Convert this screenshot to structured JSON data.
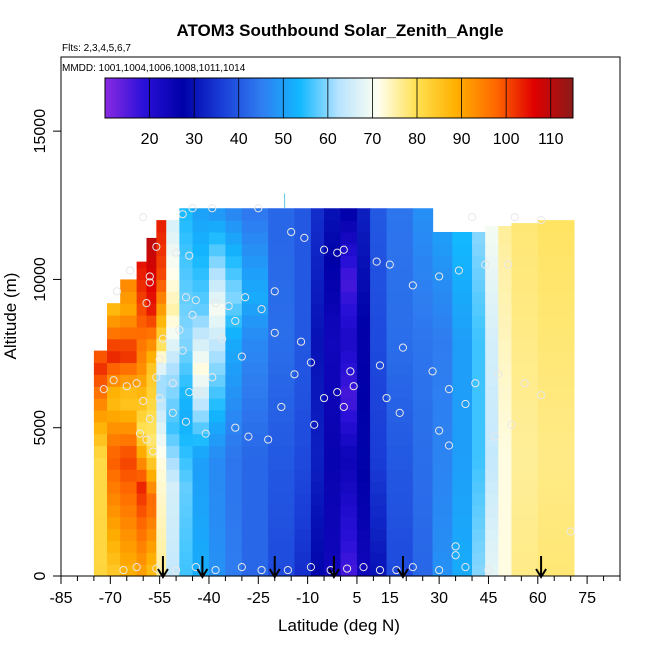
{
  "header": {
    "title": "ATOM3 Southbound Solar_Zenith_Angle",
    "flights": "Flts: 2,3,4,5,6,7",
    "dates": "MMDD: 1001,1004,1006,1008,1011,1014"
  },
  "chart_data": {
    "type": "heatmap",
    "title": "ATOM3 Southbound Solar_Zenith_Angle",
    "xlabel": "Latitude (deg N)",
    "ylabel": "Altitude (m)",
    "xlim": [
      -85,
      85
    ],
    "ylim": [
      0,
      17500
    ],
    "x_ticks": [
      -85,
      -70,
      -55,
      -40,
      -25,
      -10,
      5,
      15,
      30,
      45,
      60,
      75
    ],
    "x_minor_ticks": [
      -80,
      -75,
      -65,
      -60,
      -50,
      -45,
      -35,
      -30,
      -20,
      -15,
      -5,
      0,
      10,
      20,
      25,
      35,
      40,
      50,
      55,
      65,
      70,
      80,
      85
    ],
    "y_ticks": [
      0,
      5000,
      10000,
      15000
    ],
    "colorbar": {
      "ticks": [
        20,
        30,
        40,
        50,
        60,
        70,
        80,
        90,
        100,
        110
      ],
      "range": [
        10,
        115
      ],
      "colors": [
        "#8a2be2",
        "#2a10d8",
        "#0000a8",
        "#1a3ed8",
        "#2f7cf0",
        "#12b8ff",
        "#b8e4ff",
        "#fffff0",
        "#ffe050",
        "#ffb000",
        "#ff6a00",
        "#e00000",
        "#8b1a1a"
      ]
    },
    "marker_latitudes": [
      -54,
      -42,
      -20,
      -2,
      19,
      61
    ],
    "columns": [
      {
        "x0": -75,
        "x1": -71,
        "ytop": 7600,
        "values": [
          [
            0,
            82
          ],
          [
            4000,
            81
          ],
          [
            7000,
            102
          ],
          [
            7600,
            98
          ]
        ]
      },
      {
        "x0": -71,
        "x1": -67,
        "ytop": 9200,
        "values": [
          [
            0,
            84
          ],
          [
            4000,
            99
          ],
          [
            6000,
            86
          ],
          [
            7500,
            104
          ],
          [
            9200,
            85
          ]
        ]
      },
      {
        "x0": -67,
        "x1": -62,
        "ytop": 10000,
        "values": [
          [
            0,
            88
          ],
          [
            4000,
            101
          ],
          [
            6000,
            84
          ],
          [
            7500,
            103
          ],
          [
            9000,
            90
          ],
          [
            10000,
            94
          ]
        ]
      },
      {
        "x0": -62,
        "x1": -59,
        "ytop": 10600,
        "values": [
          [
            0,
            90
          ],
          [
            3000,
            103
          ],
          [
            5000,
            80
          ],
          [
            7000,
            93
          ],
          [
            9000,
            100
          ],
          [
            10600,
            105
          ]
        ]
      },
      {
        "x0": -59,
        "x1": -56,
        "ytop": 11400,
        "values": [
          [
            0,
            86
          ],
          [
            2500,
            98
          ],
          [
            4500,
            78
          ],
          [
            7000,
            85
          ],
          [
            9000,
            104
          ],
          [
            11400,
            110
          ]
        ]
      },
      {
        "x0": -56,
        "x1": -53,
        "ytop": 12000,
        "values": [
          [
            0,
            76
          ],
          [
            4000,
            72
          ],
          [
            6500,
            60
          ],
          [
            8000,
            82
          ],
          [
            10000,
            100
          ],
          [
            12000,
            104
          ]
        ]
      },
      {
        "x0": -53,
        "x1": -49,
        "ytop": 12000,
        "values": [
          [
            0,
            64
          ],
          [
            3000,
            66
          ],
          [
            5000,
            56
          ],
          [
            7000,
            62
          ],
          [
            9000,
            75
          ],
          [
            12000,
            66
          ]
        ]
      },
      {
        "x0": -49,
        "x1": -45,
        "ytop": 12400,
        "values": [
          [
            0,
            56
          ],
          [
            3000,
            58
          ],
          [
            5500,
            52
          ],
          [
            8000,
            60
          ],
          [
            12400,
            54
          ]
        ]
      },
      {
        "x0": -45,
        "x1": -40,
        "ytop": 12400,
        "values": [
          [
            0,
            52
          ],
          [
            4000,
            50
          ],
          [
            7000,
            72
          ],
          [
            9000,
            58
          ],
          [
            12400,
            50
          ]
        ]
      },
      {
        "x0": -40,
        "x1": -35,
        "ytop": 12400,
        "values": [
          [
            0,
            48
          ],
          [
            4000,
            47
          ],
          [
            7500,
            62
          ],
          [
            9000,
            70
          ],
          [
            12400,
            48
          ]
        ]
      },
      {
        "x0": -35,
        "x1": -30,
        "ytop": 12400,
        "values": [
          [
            0,
            45
          ],
          [
            4000,
            44
          ],
          [
            8000,
            52
          ],
          [
            9500,
            60
          ],
          [
            12400,
            46
          ]
        ]
      },
      {
        "x0": -30,
        "x1": -22,
        "ytop": 12400,
        "values": [
          [
            0,
            42
          ],
          [
            4000,
            42
          ],
          [
            8000,
            47
          ],
          [
            9500,
            52
          ],
          [
            12400,
            44
          ]
        ]
      },
      {
        "x0": -22,
        "x1": -14,
        "ytop": 12400,
        "values": [
          [
            0,
            38
          ],
          [
            4000,
            40
          ],
          [
            8000,
            43
          ],
          [
            12400,
            42
          ]
        ]
      },
      {
        "x0": -14,
        "x1": -9,
        "ytop": 12400,
        "values": [
          [
            0,
            34
          ],
          [
            4000,
            38
          ],
          [
            8000,
            40
          ],
          [
            12400,
            40
          ]
        ]
      },
      {
        "x0": -9,
        "x1": -5,
        "ytop": 12400,
        "values": [
          [
            0,
            28
          ],
          [
            4000,
            32
          ],
          [
            8000,
            30
          ],
          [
            12400,
            34
          ]
        ]
      },
      {
        "x0": -5,
        "x1": 0,
        "ytop": 12400,
        "values": [
          [
            0,
            24
          ],
          [
            4000,
            26
          ],
          [
            8000,
            24
          ],
          [
            12400,
            30
          ]
        ]
      },
      {
        "x0": 0,
        "x1": 5,
        "ytop": 12400,
        "values": [
          [
            0,
            16
          ],
          [
            4000,
            25
          ],
          [
            6000,
            16
          ],
          [
            8000,
            22
          ],
          [
            10000,
            16
          ],
          [
            12400,
            28
          ]
        ]
      },
      {
        "x0": 5,
        "x1": 9,
        "ytop": 12400,
        "values": [
          [
            0,
            24
          ],
          [
            4000,
            28
          ],
          [
            8000,
            27
          ],
          [
            12400,
            32
          ]
        ]
      },
      {
        "x0": 9,
        "x1": 14,
        "ytop": 12400,
        "values": [
          [
            0,
            30
          ],
          [
            4000,
            36
          ],
          [
            8000,
            38
          ],
          [
            12400,
            40
          ]
        ]
      },
      {
        "x0": 14,
        "x1": 22,
        "ytop": 12400,
        "values": [
          [
            0,
            38
          ],
          [
            4000,
            40
          ],
          [
            8000,
            43
          ],
          [
            12400,
            44
          ]
        ]
      },
      {
        "x0": 22,
        "x1": 28,
        "ytop": 12400,
        "values": [
          [
            0,
            42
          ],
          [
            4000,
            43
          ],
          [
            8000,
            44
          ],
          [
            12400,
            48
          ]
        ]
      },
      {
        "x0": 28,
        "x1": 34,
        "ytop": 11600,
        "values": [
          [
            0,
            48
          ],
          [
            4000,
            46
          ],
          [
            8000,
            45
          ],
          [
            11600,
            50
          ]
        ]
      },
      {
        "x0": 34,
        "x1": 40,
        "ytop": 11600,
        "values": [
          [
            0,
            52
          ],
          [
            4000,
            50
          ],
          [
            8000,
            50
          ],
          [
            11600,
            54
          ]
        ]
      },
      {
        "x0": 40,
        "x1": 44,
        "ytop": 11600,
        "values": [
          [
            0,
            60
          ],
          [
            4000,
            56
          ],
          [
            8000,
            56
          ],
          [
            11600,
            60
          ]
        ]
      },
      {
        "x0": 44,
        "x1": 48,
        "ytop": 11800,
        "values": [
          [
            0,
            68
          ],
          [
            4000,
            64
          ],
          [
            8000,
            66
          ],
          [
            11800,
            70
          ]
        ]
      },
      {
        "x0": 48,
        "x1": 52,
        "ytop": 11800,
        "values": [
          [
            0,
            72
          ],
          [
            4000,
            72
          ],
          [
            8000,
            74
          ],
          [
            11800,
            76
          ]
        ]
      },
      {
        "x0": 52,
        "x1": 60,
        "ytop": 11900,
        "values": [
          [
            0,
            77
          ],
          [
            4000,
            76
          ],
          [
            8000,
            77
          ],
          [
            11900,
            78
          ]
        ]
      },
      {
        "x0": 60,
        "x1": 71,
        "ytop": 12000,
        "values": [
          [
            0,
            78
          ],
          [
            4000,
            77
          ],
          [
            8000,
            78
          ],
          [
            12000,
            79
          ]
        ]
      }
    ],
    "observation_points": [
      [
        -56,
        11100
      ],
      [
        -50,
        10900
      ],
      [
        -46,
        10800
      ],
      [
        -58,
        10100
      ],
      [
        -58,
        9900
      ],
      [
        -47,
        9400
      ],
      [
        -44,
        9300
      ],
      [
        -45,
        8800
      ],
      [
        -38,
        9200
      ],
      [
        -34,
        9100
      ],
      [
        -29,
        9400
      ],
      [
        -32,
        8600
      ],
      [
        -24,
        9000
      ],
      [
        -20,
        9600
      ],
      [
        -15,
        11600
      ],
      [
        -11,
        11400
      ],
      [
        -5,
        11000
      ],
      [
        -1,
        10900
      ],
      [
        1,
        11000
      ],
      [
        11,
        10600
      ],
      [
        15,
        10500
      ],
      [
        22,
        9800
      ],
      [
        30,
        10100
      ],
      [
        36,
        10300
      ],
      [
        44,
        10500
      ],
      [
        51,
        10500
      ],
      [
        -64,
        10300
      ],
      [
        -68,
        9600
      ],
      [
        -59,
        9200
      ],
      [
        -54,
        8000
      ],
      [
        -49,
        8300
      ],
      [
        -48,
        7600
      ],
      [
        -55,
        7300
      ],
      [
        -56,
        6700
      ],
      [
        -51,
        6500
      ],
      [
        -43,
        6200
      ],
      [
        -39,
        6700
      ],
      [
        -46,
        6200
      ],
      [
        -62,
        6500
      ],
      [
        -65,
        6400
      ],
      [
        -69,
        6600
      ],
      [
        -72,
        6300
      ],
      [
        -60,
        5900
      ],
      [
        -58,
        5300
      ],
      [
        -51,
        5500
      ],
      [
        -47,
        5200
      ],
      [
        -41,
        4800
      ],
      [
        -32,
        5000
      ],
      [
        -28,
        4700
      ],
      [
        -22,
        4600
      ],
      [
        -18,
        5700
      ],
      [
        -14,
        6800
      ],
      [
        -9,
        7200
      ],
      [
        -5,
        6000
      ],
      [
        -8,
        5100
      ],
      [
        -1,
        6200
      ],
      [
        4,
        6400
      ],
      [
        3,
        6900
      ],
      [
        1,
        5700
      ],
      [
        12,
        7100
      ],
      [
        19,
        7700
      ],
      [
        14,
        6000
      ],
      [
        18,
        5500
      ],
      [
        28,
        6900
      ],
      [
        33,
        6300
      ],
      [
        41,
        6500
      ],
      [
        48,
        6800
      ],
      [
        56,
        6500
      ],
      [
        52,
        5100
      ],
      [
        61,
        6100
      ],
      [
        38,
        5800
      ],
      [
        30,
        4900
      ],
      [
        47,
        4700
      ],
      [
        33,
        4400
      ],
      [
        -57,
        4200
      ],
      [
        -59,
        4600
      ],
      [
        -61,
        4800
      ],
      [
        -55,
        6000
      ],
      [
        -66,
        200
      ],
      [
        -62,
        300
      ],
      [
        -56,
        250
      ],
      [
        -50,
        200
      ],
      [
        -44,
        300
      ],
      [
        -38,
        200
      ],
      [
        -30,
        300
      ],
      [
        -24,
        200
      ],
      [
        -16,
        200
      ],
      [
        -9,
        300
      ],
      [
        -3,
        200
      ],
      [
        2,
        250
      ],
      [
        7,
        300
      ],
      [
        12,
        200
      ],
      [
        17,
        200
      ],
      [
        22,
        300
      ],
      [
        30,
        200
      ],
      [
        38,
        300
      ],
      [
        45,
        200
      ],
      [
        35,
        700
      ],
      [
        35,
        1000
      ],
      [
        70,
        1500
      ],
      [
        -39,
        12400
      ],
      [
        -48,
        12200
      ],
      [
        -60,
        12100
      ],
      [
        -45,
        12400
      ],
      [
        -25,
        12400
      ],
      [
        40,
        12100
      ],
      [
        53,
        12100
      ],
      [
        61,
        12000
      ],
      [
        -36,
        8000
      ],
      [
        -30,
        7400
      ],
      [
        -20,
        8200
      ],
      [
        -12,
        7900
      ]
    ]
  }
}
